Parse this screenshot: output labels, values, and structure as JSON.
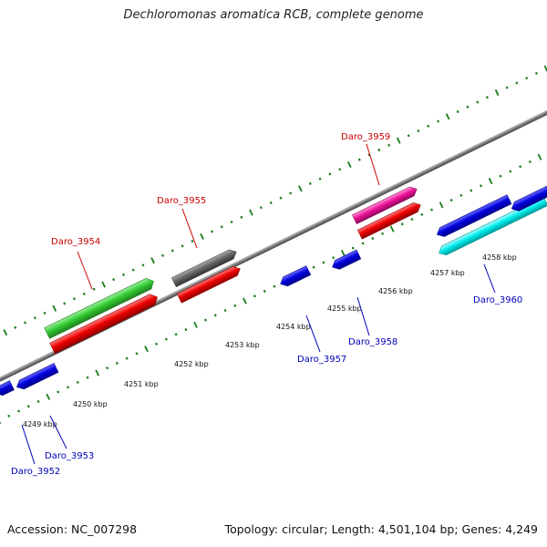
{
  "title": "Dechloromonas aromatica RCB, complete genome",
  "footer": {
    "accession": "Accession: NC_007298",
    "summary": "Topology: circular; Length: 4,501,104 bp; Genes: 4,249"
  },
  "colors": {
    "backbone": "#888888",
    "tick": "#1a7a1a",
    "top_label": "#cc0000",
    "bottom_label": "#0000bb",
    "scale_text": "#111111"
  },
  "scale_labels": [
    "4249 kbp",
    "4250 kbp",
    "4251 kbp",
    "4252 kbp",
    "4253 kbp",
    "4254 kbp",
    "4255 kbp",
    "4256 kbp",
    "4257 kbp",
    "4258 kbp"
  ],
  "genes": [
    {
      "name": "Daro_3952",
      "strand": "-",
      "color": "blue",
      "label": "Daro_3952"
    },
    {
      "name": "Daro_3953",
      "strand": "-",
      "color": "blue",
      "label": "Daro_3953"
    },
    {
      "name": "Daro_3954",
      "strand": "+",
      "color": "green",
      "label": "Daro_3954"
    },
    {
      "name": "Daro_3954_cds",
      "strand": "+",
      "color": "red",
      "label": ""
    },
    {
      "name": "Daro_3955",
      "strand": "+",
      "color": "gray",
      "label": "Daro_3955"
    },
    {
      "name": "Daro_3955_cds",
      "strand": "+",
      "color": "red",
      "label": ""
    },
    {
      "name": "Daro_3957",
      "strand": "-",
      "color": "blue",
      "label": "Daro_3957"
    },
    {
      "name": "Daro_3958",
      "strand": "-",
      "color": "blue",
      "label": "Daro_3958"
    },
    {
      "name": "Daro_3959",
      "strand": "+",
      "color": "magenta",
      "label": "Daro_3959"
    },
    {
      "name": "Daro_3959_cds",
      "strand": "+",
      "color": "red",
      "label": ""
    },
    {
      "name": "Daro_3960",
      "strand": "-",
      "color": "cyan",
      "label": "Daro_3960"
    },
    {
      "name": "Daro_3960_cds",
      "strand": "-",
      "color": "blue",
      "label": ""
    },
    {
      "name": "Daro_3961",
      "strand": "-",
      "color": "blue",
      "label": ""
    }
  ]
}
